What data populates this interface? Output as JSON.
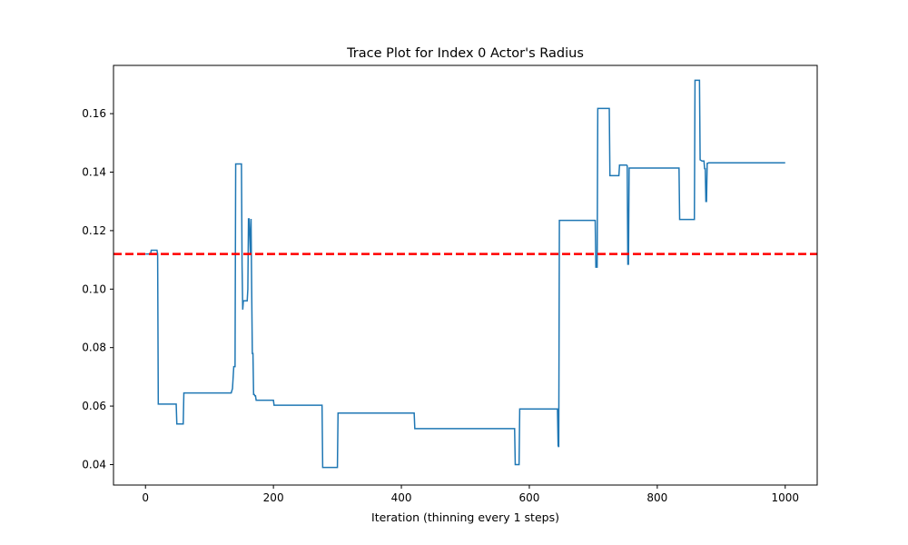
{
  "chart_data": {
    "type": "line",
    "title": "Trace Plot for Index 0 Actor's Radius",
    "xlabel": "Iteration (thinning every 1 steps)",
    "ylabel": "",
    "xlim": [
      -50,
      1050
    ],
    "ylim": [
      0.033,
      0.1765
    ],
    "xticks": [
      0,
      200,
      400,
      600,
      800,
      1000
    ],
    "yticks": [
      0.04,
      0.06,
      0.08,
      0.1,
      0.12,
      0.14,
      0.16
    ],
    "xtick_labels": [
      "0",
      "200",
      "400",
      "600",
      "800",
      "1000"
    ],
    "ytick_labels": [
      "0.04",
      "0.06",
      "0.08",
      "0.10",
      "0.12",
      "0.14",
      "0.16"
    ],
    "grid": false,
    "reference_line": {
      "y": 0.112,
      "color": "#ff0000",
      "style": "dashed"
    },
    "series": [
      {
        "color": "#1f77b4",
        "x": [
          0,
          8,
          9,
          18,
          19,
          20,
          48,
          49,
          59,
          60,
          134,
          136,
          138,
          140,
          141,
          150,
          151,
          152,
          153,
          159,
          160,
          161,
          162,
          164,
          165,
          166,
          167,
          168,
          169,
          170,
          171,
          172,
          173,
          174,
          200,
          201,
          276,
          277,
          300,
          301,
          420,
          421,
          577,
          578,
          584,
          585,
          644,
          645,
          646,
          647,
          703,
          704,
          706,
          707,
          725,
          726,
          740,
          741,
          752,
          753,
          754,
          755,
          756,
          757,
          834,
          835,
          858,
          859,
          866,
          867,
          870,
          873,
          874,
          875,
          876,
          877,
          878,
          879,
          880,
          1000
        ],
        "y": [
          0.112,
          0.112,
          0.1133,
          0.1133,
          0.112,
          0.0607,
          0.0607,
          0.0539,
          0.0539,
          0.0645,
          0.0645,
          0.066,
          0.0735,
          0.0735,
          0.1428,
          0.1428,
          0.108,
          0.093,
          0.096,
          0.096,
          0.1,
          0.124,
          0.124,
          0.112,
          0.124,
          0.1,
          0.078,
          0.078,
          0.064,
          0.064,
          0.0635,
          0.0635,
          0.062,
          0.062,
          0.062,
          0.0603,
          0.0603,
          0.039,
          0.039,
          0.0576,
          0.0576,
          0.0523,
          0.0523,
          0.04,
          0.04,
          0.059,
          0.059,
          0.0465,
          0.046,
          0.1235,
          0.1235,
          0.1075,
          0.1075,
          0.1618,
          0.1618,
          0.1388,
          0.1388,
          0.1424,
          0.1424,
          0.1422,
          0.1085,
          0.1085,
          0.1414,
          0.1414,
          0.1414,
          0.1238,
          0.1238,
          0.1714,
          0.1714,
          0.1442,
          0.1438,
          0.1438,
          0.1412,
          0.1412,
          0.13,
          0.13,
          0.143,
          0.143,
          0.1432,
          0.1432
        ]
      }
    ]
  }
}
